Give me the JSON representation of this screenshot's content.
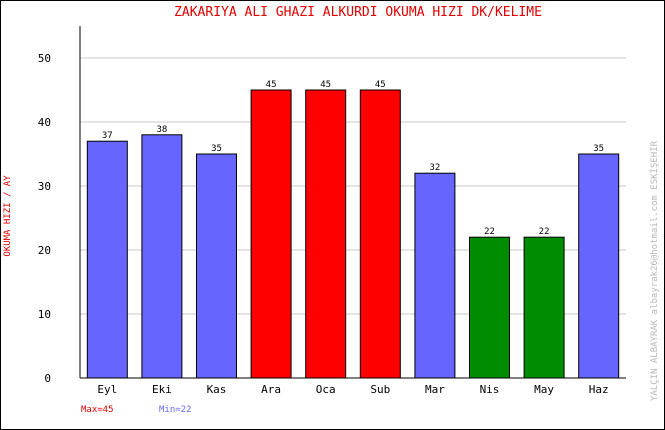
{
  "chart_data": {
    "type": "bar",
    "title": "ZAKARIYA ALI GHAZI ALKURDI   OKUMA HIZI  DK/KELIME",
    "xlabel": "",
    "ylabel": "OKUMA HIZI / AY",
    "ylim": [
      0,
      55
    ],
    "yticks": [
      0,
      10,
      20,
      30,
      40,
      50
    ],
    "grid": true,
    "categories": [
      "Eyl",
      "Eki",
      "Kas",
      "Ara",
      "Oca",
      "Sub",
      "Mar",
      "Nis",
      "May",
      "Haz"
    ],
    "values": [
      37,
      38,
      35,
      45,
      45,
      45,
      32,
      22,
      22,
      35
    ],
    "bar_colors": [
      "#6666ff",
      "#6666ff",
      "#6666ff",
      "#ff0000",
      "#ff0000",
      "#ff0000",
      "#6666ff",
      "#008c00",
      "#008c00",
      "#6666ff"
    ],
    "max_label": "Max=45",
    "min_label": "Min=22",
    "max_color": "#e00000",
    "min_color": "#6666ff",
    "credit": "YALÇIN ALBAYRAK  albayrak26@hotmail.com  ESKİŞEHİR"
  }
}
